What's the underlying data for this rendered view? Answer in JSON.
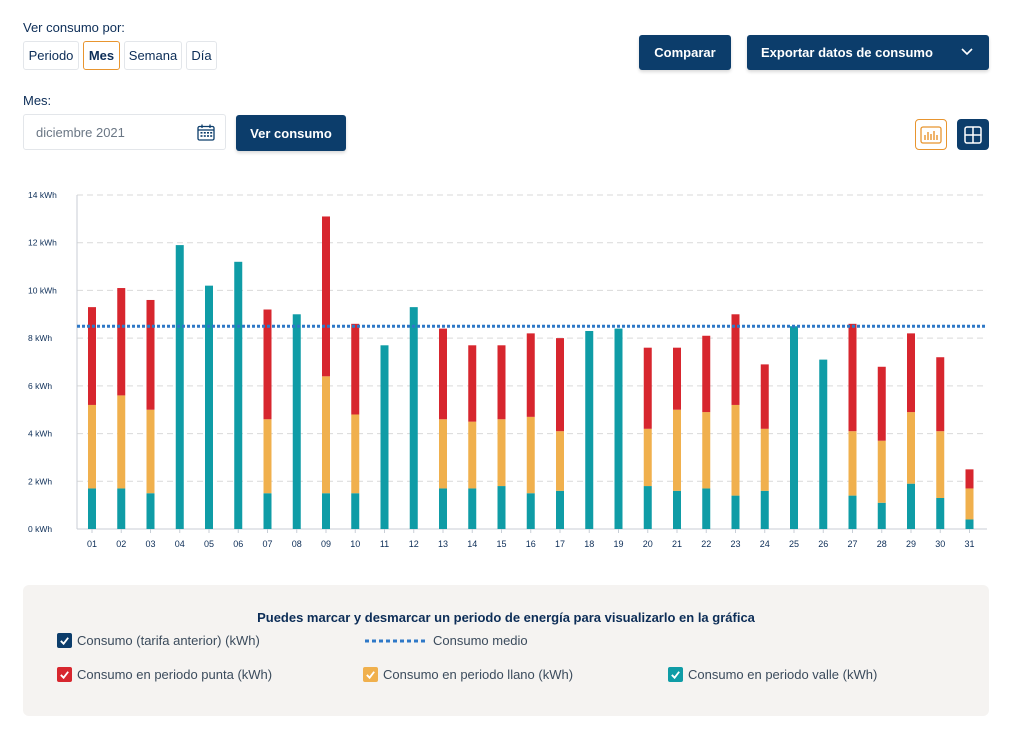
{
  "view_by": {
    "label": "Ver consumo por:",
    "options": [
      "Periodo",
      "Mes",
      "Semana",
      "Día"
    ],
    "selected": "Mes"
  },
  "actions": {
    "compare_label": "Comparar",
    "export_label": "Exportar datos de consumo"
  },
  "month_field": {
    "label": "Mes:",
    "value": "diciembre 2021",
    "icon": "calendar-icon"
  },
  "view_button_label": "Ver consumo",
  "view_toggles": {
    "bar_chart_icon": "bar-chart-icon",
    "table_icon": "grid-icon",
    "active": "bar-chart"
  },
  "legend": {
    "title": "Puedes marcar y desmarcar un periodo de energía para visualizarlo en la gráfica",
    "items": {
      "previous": "Consumo (tarifa anterior) (kWh)",
      "average": "Consumo medio",
      "punta": "Consumo en periodo punta (kWh)",
      "llano": "Consumo en periodo llano (kWh)",
      "valle": "Consumo en periodo valle (kWh)"
    }
  },
  "colors": {
    "primary": "#0c3d6b",
    "accent": "#e8952f",
    "punta": "#d7262e",
    "llano": "#f0b04d",
    "valle": "#0f9ca6",
    "average": "#2e78c7",
    "grid": "#d9d9d9"
  },
  "chart_data": {
    "type": "bar",
    "stacked": true,
    "categories": [
      "01",
      "02",
      "03",
      "04",
      "05",
      "06",
      "07",
      "08",
      "09",
      "10",
      "11",
      "12",
      "13",
      "14",
      "15",
      "16",
      "17",
      "18",
      "19",
      "20",
      "21",
      "22",
      "23",
      "24",
      "25",
      "26",
      "27",
      "28",
      "29",
      "30",
      "31"
    ],
    "y_ticks": [
      "0 kWh",
      "2 kWh",
      "4 kWh",
      "6 kWh",
      "8 kWh",
      "10 kWh",
      "12 kWh",
      "14 kWh"
    ],
    "ylim": [
      0,
      14
    ],
    "grid": true,
    "series": [
      {
        "key": "valle",
        "values": [
          1.7,
          1.7,
          1.5,
          11.9,
          10.2,
          11.2,
          1.5,
          9.0,
          1.5,
          1.5,
          7.7,
          9.3,
          1.7,
          1.7,
          1.8,
          1.5,
          1.6,
          8.3,
          8.4,
          1.8,
          1.6,
          1.7,
          1.4,
          1.6,
          8.5,
          7.1,
          1.4,
          1.1,
          1.9,
          1.3,
          0.4
        ]
      },
      {
        "key": "llano",
        "values": [
          3.5,
          3.9,
          3.5,
          0,
          0,
          0,
          3.1,
          0,
          4.9,
          3.3,
          0,
          0,
          2.9,
          2.8,
          2.8,
          3.2,
          2.5,
          0,
          0,
          2.4,
          3.4,
          3.2,
          3.8,
          2.6,
          0,
          0,
          2.7,
          2.6,
          3.0,
          2.8,
          1.3
        ]
      },
      {
        "key": "punta",
        "values": [
          4.1,
          4.5,
          4.6,
          0,
          0,
          0,
          4.6,
          0,
          6.7,
          3.8,
          0,
          0,
          3.8,
          3.2,
          3.1,
          3.5,
          3.9,
          0,
          0,
          3.4,
          2.6,
          3.2,
          3.8,
          2.7,
          0,
          0,
          4.5,
          3.1,
          3.3,
          3.1,
          0.8
        ]
      }
    ],
    "average_line": 8.5
  }
}
